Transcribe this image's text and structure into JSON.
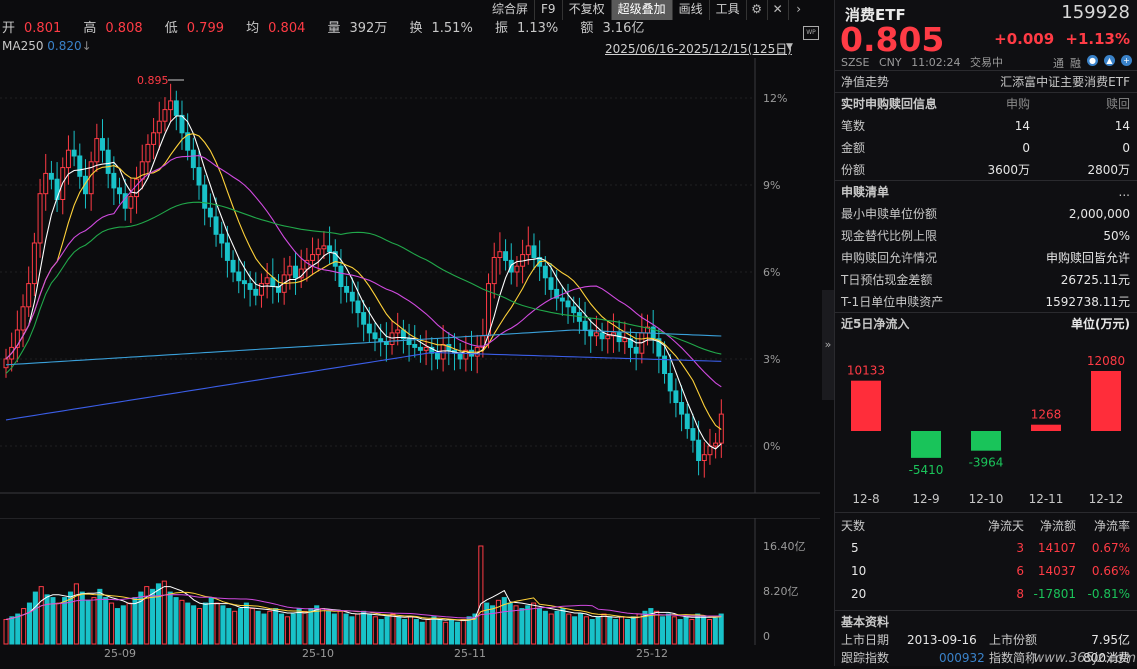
{
  "stats": {
    "open_label": "开",
    "open": "0.801",
    "high_label": "高",
    "high": "0.808",
    "low_label": "低",
    "low": "0.799",
    "avg_label": "均",
    "avg": "0.804",
    "vol_label": "量",
    "vol": "392万",
    "turn_label": "换",
    "turn": "1.51%",
    "amp_label": "振",
    "amp": "1.13%",
    "amt_label": "额",
    "amt": "3.16亿"
  },
  "ma": {
    "label": "MA250",
    "value": "0.820"
  },
  "toolbar": {
    "items": [
      "综合屏",
      "F9",
      "不复权",
      "超级叠加",
      "画线",
      "工具"
    ],
    "settings_icon": "gear-icon",
    "close_icon": "close-icon",
    "next_icon": "chevron-right-icon"
  },
  "range": {
    "text": "2025/06/16-2025/12/15(125日)",
    "wp": "WP"
  },
  "chart_data": [
    {
      "type": "candlestick",
      "y_axis_labels": [
        "12%",
        "9%",
        "6%",
        "3%",
        "0%"
      ],
      "y_axis_values": [
        12,
        9,
        6,
        3,
        0
      ],
      "x_labels": [
        "25-09",
        "25-10",
        "25-11",
        "25-12"
      ],
      "peak_annotation": "0.895",
      "colors": {
        "up": "#ff3b45",
        "down": "#19c2c9",
        "ma5": "#ffffff",
        "ma10": "#ffd23a",
        "ma20": "#d04adf",
        "ma60": "#21a84a",
        "ma120": "#3aa0d9",
        "ma250": "#3b5ee8"
      }
    },
    {
      "type": "bar",
      "y_axis_labels": [
        "16.40亿",
        "8.20亿",
        "0"
      ],
      "y_axis_values": [
        16.4,
        8.2,
        0
      ]
    }
  ],
  "panel": {
    "name": "消费ETF",
    "code": "159928",
    "price": "0.805",
    "change": "+0.009",
    "change_pct": "+1.13%",
    "exchange": "SZSE",
    "currency": "CNY",
    "time": "11:02:24",
    "status": "交易中",
    "tags": [
      "通",
      "融"
    ],
    "nav_label": "净值走势",
    "nav_value": "汇添富中证主要消费ETF",
    "rt_title": "实时申购赎回信息",
    "rt_col1": "申购",
    "rt_col2": "赎回",
    "rt_rows": [
      {
        "label": "笔数",
        "a": "14",
        "b": "14"
      },
      {
        "label": "金额",
        "a": "0",
        "b": "0"
      },
      {
        "label": "份额",
        "a": "3600万",
        "b": "2800万"
      }
    ],
    "pcf_title": "申赎清单",
    "more": "...",
    "pcf_rows": [
      {
        "label": "最小申赎单位份额",
        "value": "2,000,000"
      },
      {
        "label": "现金替代比例上限",
        "value": "50%"
      },
      {
        "label": "申购赎回允许情况",
        "value": "申购赎回皆允许"
      },
      {
        "label": "T日预估现金差额",
        "value": "26725.11元"
      },
      {
        "label": "T-1日单位申赎资产",
        "value": "1592738.11元"
      }
    ],
    "flow_title": "近5日净流入",
    "flow_unit": "单位(万元)",
    "flow_data": [
      {
        "date": "12-8",
        "value": 10133,
        "label": "10133"
      },
      {
        "date": "12-9",
        "value": -5410,
        "label": "-5410"
      },
      {
        "date": "12-10",
        "value": -3964,
        "label": "-3964"
      },
      {
        "date": "12-11",
        "value": 1268,
        "label": "1268"
      },
      {
        "date": "12-12",
        "value": 12080,
        "label": "12080"
      }
    ],
    "tbl_headers": [
      "天数",
      "净流天",
      "净流额",
      "净流率"
    ],
    "tbl_rows": [
      {
        "days": "5",
        "flowdays": "3",
        "amount": "14107",
        "rate": "0.67%",
        "sign": "up"
      },
      {
        "days": "10",
        "flowdays": "6",
        "amount": "14037",
        "rate": "0.66%",
        "sign": "up"
      },
      {
        "days": "20",
        "flowdays": "8",
        "amount": "-17801",
        "rate": "-0.81%",
        "sign": "down"
      }
    ],
    "basic_title": "基本资料",
    "basic_rows": [
      {
        "l1": "上市日期",
        "v1": "2013-09-16",
        "l2": "上市份额",
        "v2": "7.95亿"
      },
      {
        "l1": "跟踪指数",
        "v1": "000932",
        "l2": "指数简称",
        "v2": "800消费"
      }
    ]
  },
  "watermark": "www.365jz.com"
}
